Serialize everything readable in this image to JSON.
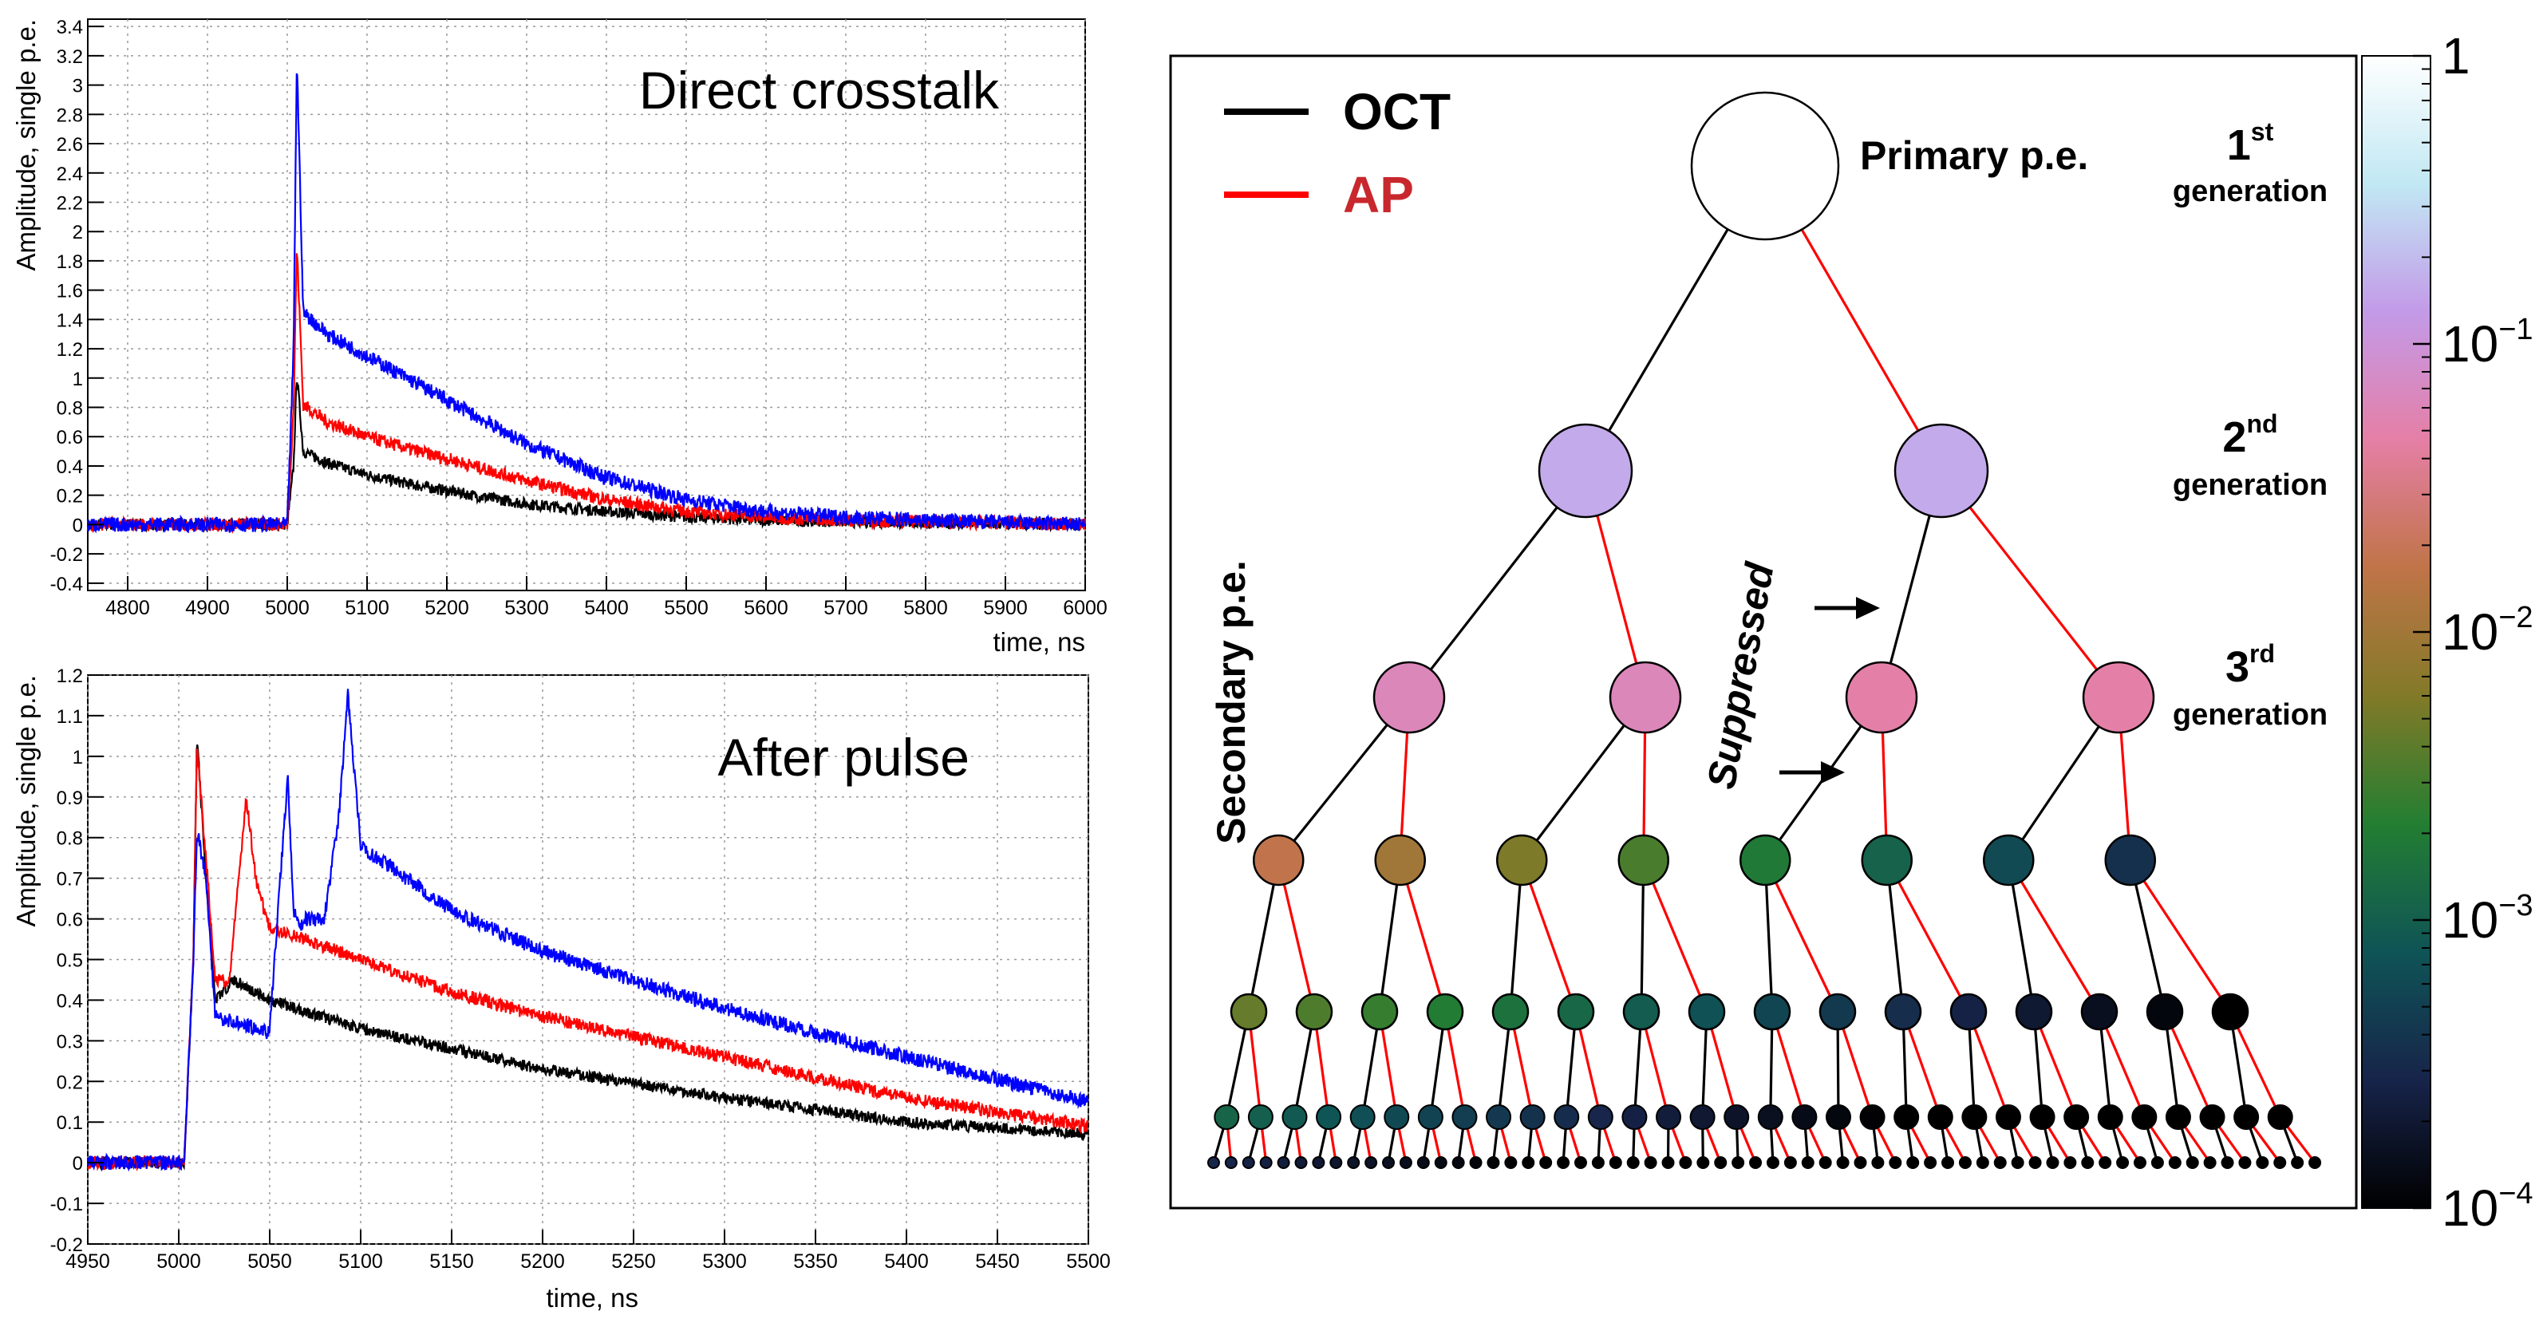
{
  "chart_data": [
    {
      "type": "line",
      "title": "Direct crosstalk",
      "xlabel": "time, ns",
      "ylabel": "Amplitude, single p.e.",
      "xlim": [
        4750,
        6000
      ],
      "ylim": [
        -0.45,
        3.45
      ],
      "xticks": [
        4800,
        4900,
        5000,
        5100,
        5200,
        5300,
        5400,
        5500,
        5600,
        5700,
        5800,
        5900,
        6000
      ],
      "yticks": [
        -0.4,
        -0.2,
        0,
        0.2,
        0.4,
        0.6,
        0.8,
        1,
        1.2,
        1.4,
        1.6,
        1.8,
        2,
        2.2,
        2.4,
        2.6,
        2.8,
        3,
        3.2,
        3.4
      ],
      "grid": true,
      "series": [
        {
          "color": "#000000",
          "baseline": 0,
          "x": [
            4750,
            5000,
            5008,
            5012,
            5020,
            5050,
            5100,
            5150,
            5200,
            5300,
            5400,
            5500,
            5600,
            5700,
            5800,
            6000
          ],
          "y": [
            0,
            0,
            0.4,
            1.03,
            0.5,
            0.42,
            0.34,
            0.28,
            0.23,
            0.14,
            0.09,
            0.05,
            0.03,
            0.02,
            0.01,
            0.0
          ]
        },
        {
          "color": "#ff0000",
          "baseline": 0,
          "x": [
            4750,
            5000,
            5008,
            5012,
            5020,
            5050,
            5100,
            5150,
            5200,
            5300,
            5400,
            5500,
            5600,
            5700,
            5800,
            6000
          ],
          "y": [
            0,
            0,
            0.8,
            1.9,
            0.82,
            0.7,
            0.6,
            0.52,
            0.45,
            0.3,
            0.17,
            0.09,
            0.05,
            0.03,
            0.02,
            0.0
          ]
        },
        {
          "color": "#0000ff",
          "baseline": 0,
          "x": [
            4750,
            5000,
            5008,
            5012,
            5020,
            5050,
            5100,
            5150,
            5200,
            5300,
            5400,
            5500,
            5600,
            5700,
            5800,
            6000
          ],
          "y": [
            0,
            0,
            1.2,
            3.2,
            1.45,
            1.3,
            1.15,
            1.0,
            0.85,
            0.55,
            0.32,
            0.17,
            0.09,
            0.05,
            0.03,
            0.0
          ]
        }
      ]
    },
    {
      "type": "line",
      "title": "After pulse",
      "xlabel": "time, ns",
      "ylabel": "Amplitude, single p.e.",
      "xlim": [
        4950,
        5500
      ],
      "ylim": [
        -0.2,
        1.2
      ],
      "xticks": [
        4950,
        5000,
        5050,
        5100,
        5150,
        5200,
        5250,
        5300,
        5350,
        5400,
        5450,
        5500
      ],
      "yticks": [
        -0.2,
        -0.1,
        0,
        0.1,
        0.2,
        0.3,
        0.4,
        0.5,
        0.6,
        0.7,
        0.8,
        0.9,
        1,
        1.1,
        1.2
      ],
      "grid": true,
      "series": [
        {
          "color": "#000000",
          "baseline": 0,
          "x": [
            4950,
            5003,
            5008,
            5010,
            5015,
            5020,
            5030,
            5050,
            5100,
            5150,
            5200,
            5300,
            5400,
            5500
          ],
          "y": [
            0,
            0,
            0.5,
            1.05,
            0.7,
            0.4,
            0.45,
            0.4,
            0.33,
            0.28,
            0.23,
            0.16,
            0.1,
            0.07
          ]
        },
        {
          "color": "#ff0000",
          "baseline": 0,
          "x": [
            4950,
            5003,
            5008,
            5010,
            5015,
            5020,
            5028,
            5033,
            5037,
            5043,
            5050,
            5100,
            5150,
            5200,
            5300,
            5400,
            5500
          ],
          "y": [
            0,
            0,
            0.5,
            1.02,
            0.75,
            0.45,
            0.45,
            0.7,
            0.9,
            0.68,
            0.58,
            0.5,
            0.42,
            0.36,
            0.26,
            0.16,
            0.09
          ]
        },
        {
          "color": "#0000ff",
          "baseline": 0,
          "x": [
            4950,
            5003,
            5008,
            5010,
            5015,
            5020,
            5050,
            5055,
            5060,
            5063,
            5067,
            5070,
            5080,
            5088,
            5093,
            5100,
            5150,
            5200,
            5300,
            5400,
            5500
          ],
          "y": [
            0,
            0,
            0.5,
            0.82,
            0.7,
            0.36,
            0.32,
            0.65,
            0.95,
            0.62,
            0.58,
            0.6,
            0.6,
            0.85,
            1.15,
            0.78,
            0.62,
            0.52,
            0.38,
            0.26,
            0.15
          ]
        }
      ]
    },
    {
      "type": "diagram",
      "legend": [
        {
          "label": "OCT",
          "color": "#000000"
        },
        {
          "label": "AP",
          "color": "#e31a1c"
        }
      ],
      "labels": {
        "primary": "Primary p.e.",
        "secondary": "Secondary p.e.",
        "suppressed": "Suppressed"
      },
      "generations": [
        {
          "number": "1",
          "suffix": "st",
          "word": "generation"
        },
        {
          "number": "2",
          "suffix": "nd",
          "word": "generation"
        },
        {
          "number": "3",
          "suffix": "rd",
          "word": "generation"
        }
      ],
      "levels": 7,
      "colorbar": {
        "scale": "log",
        "range": [
          0.0001,
          1
        ],
        "ticks": [
          {
            "base": "1",
            "exp": ""
          },
          {
            "base": "10",
            "exp": "−1"
          },
          {
            "base": "10",
            "exp": "−2"
          },
          {
            "base": "10",
            "exp": "−3"
          },
          {
            "base": "10",
            "exp": "−4"
          }
        ],
        "stops": [
          "#000000",
          "#17244a",
          "#0f5456",
          "#237e32",
          "#827a28",
          "#c07448",
          "#e57fa6",
          "#c39ae8",
          "#c1e8f3",
          "#ffffff"
        ]
      }
    }
  ]
}
